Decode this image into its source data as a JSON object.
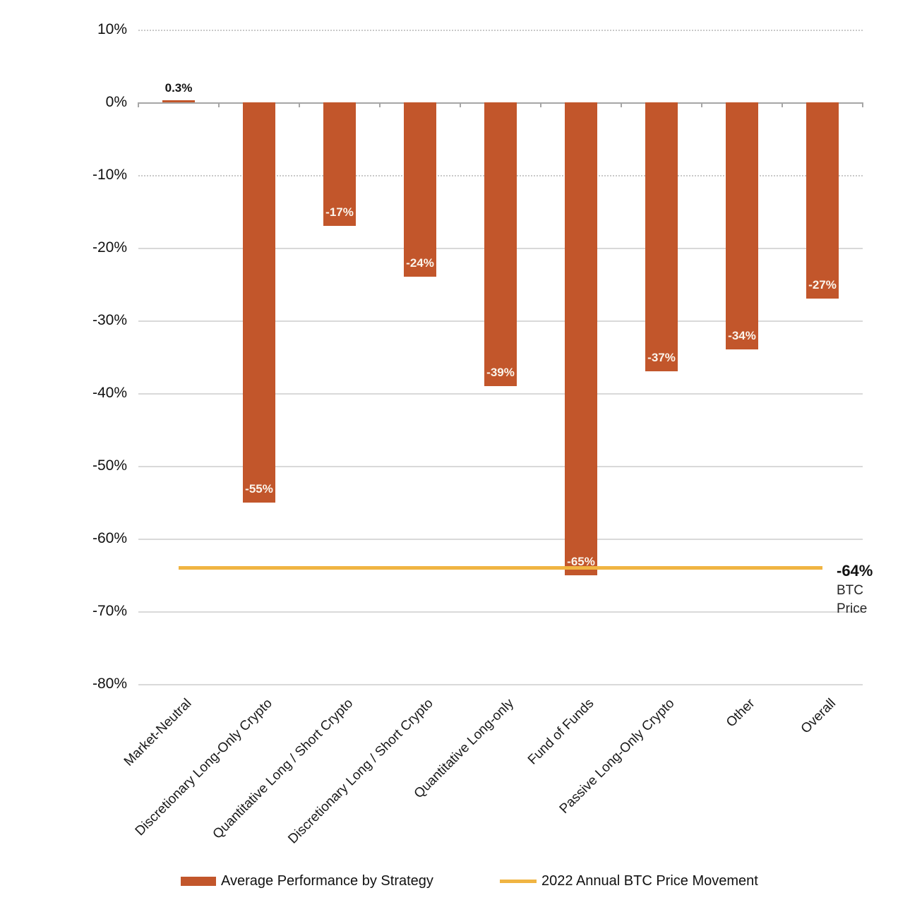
{
  "chart_data": {
    "type": "bar",
    "title": "",
    "categories": [
      "Market-Neutral",
      "Discretionary Long-Only Crypto",
      "Quantitative Long / Short Crypto",
      "Discretionary Long / Short Crypto",
      "Quantitative Long-only",
      "Fund of Funds",
      "Passive Long-Only Crypto",
      "Other",
      "Overall"
    ],
    "series": [
      {
        "name": "Average Performance by Strategy",
        "type": "bar",
        "values": [
          0.3,
          -55,
          -17,
          -24,
          -39,
          -65,
          -37,
          -34,
          -27
        ],
        "value_labels": [
          "0.3%",
          "-55%",
          "-17%",
          "-24%",
          "-39%",
          "-65%",
          "-37%",
          "-34%",
          "-27%"
        ],
        "color": "#C2562B"
      },
      {
        "name": "2022 Annual BTC Price Movement",
        "type": "line",
        "value": -64,
        "value_label": "-64%",
        "color": "#F0B442"
      }
    ],
    "ylim": [
      -80,
      10
    ],
    "ytick_step": 10,
    "ytick_labels": [
      "10%",
      "0%",
      "-10%",
      "-20%",
      "-30%",
      "-40%",
      "-50%",
      "-60%",
      "-70%",
      "-80%"
    ],
    "grid": true,
    "legend_position": "bottom",
    "annotation": {
      "value_label": "-64%",
      "caption_line1": "BTC",
      "caption_line2": "Price"
    },
    "colors": {
      "bar": "#C2562B",
      "line": "#F0B442",
      "gridline": "#d9d9d9",
      "axis": "#a6a6a6",
      "bar_label_inside": "#fbf5ec",
      "text": "#111111"
    }
  }
}
